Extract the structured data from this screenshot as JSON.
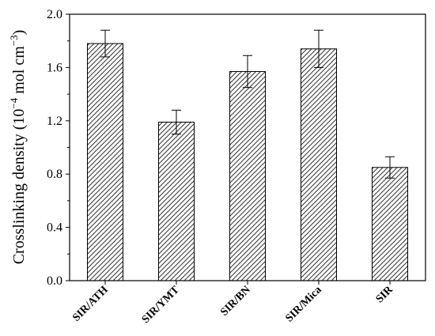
{
  "chart_data": {
    "type": "bar",
    "categories": [
      "SIR/ATH",
      "SIR/YMT",
      "SIR/BN",
      "SIR/Mica",
      "SIR"
    ],
    "values": [
      1.78,
      1.19,
      1.57,
      1.74,
      0.85
    ],
    "errors": [
      0.1,
      0.09,
      0.12,
      0.14,
      0.08
    ],
    "title": "",
    "xlabel": "",
    "ylabel_main": "Crosslinking density (10",
    "ylabel_exponent": "−4",
    "ylabel_unit": " mol cm",
    "ylabel_unit_exponent": "−3",
    "ylabel_close": ")",
    "ylim": [
      0.0,
      2.0
    ],
    "yticks": [
      "0.0",
      "0.4",
      "0.8",
      "1.2",
      "1.6",
      "2.0"
    ],
    "bar_fill": "hatched",
    "bar_color": "#000000",
    "grid": false,
    "legend": "none"
  }
}
